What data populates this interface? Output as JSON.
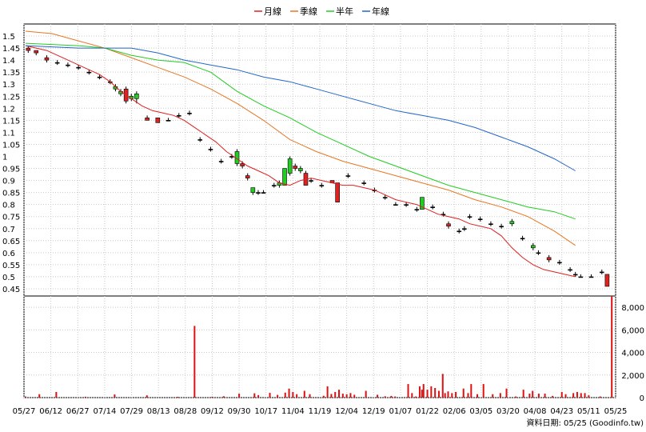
{
  "chart_data": {
    "type": "line",
    "legend": {
      "placement": "top-center",
      "items": [
        {
          "name": "月線",
          "color": "#e02020"
        },
        {
          "name": "季線",
          "color": "#e87722"
        },
        {
          "name": "半年",
          "color": "#22cc22"
        },
        {
          "name": "年線",
          "color": "#2266cc"
        }
      ]
    },
    "x_tick_labels": [
      "05/27",
      "06/12",
      "06/27",
      "07/14",
      "07/29",
      "08/13",
      "08/28",
      "09/12",
      "09/30",
      "10/17",
      "11/04",
      "11/19",
      "12/04",
      "12/19",
      "01/07",
      "01/22",
      "02/06",
      "03/05",
      "03/20",
      "04/08",
      "04/23",
      "05/11",
      "05/25"
    ],
    "price_axis": {
      "ticks": [
        1.5,
        1.45,
        1.4,
        1.35,
        1.3,
        1.25,
        1.2,
        1.15,
        1.1,
        1.05,
        1,
        0.95,
        0.9,
        0.85,
        0.8,
        0.75,
        0.7,
        0.65,
        0.6,
        0.55,
        0.5,
        0.45
      ],
      "ylim": [
        0.42,
        1.55
      ]
    },
    "volume_axis": {
      "ticks": [
        "8,000",
        "6,000",
        "4,000",
        "2,000",
        "0"
      ],
      "ylim": [
        0,
        9000
      ]
    },
    "grid": true,
    "series": [
      {
        "name": "月線",
        "color": "#e02020",
        "values": [
          [
            0,
            1.46
          ],
          [
            4,
            1.45
          ],
          [
            8,
            1.44
          ],
          [
            12,
            1.42
          ],
          [
            16,
            1.4
          ],
          [
            20,
            1.38
          ],
          [
            24,
            1.36
          ],
          [
            28,
            1.34
          ],
          [
            32,
            1.31
          ],
          [
            36,
            1.27
          ],
          [
            40,
            1.24
          ],
          [
            44,
            1.21
          ],
          [
            48,
            1.19
          ],
          [
            52,
            1.18
          ],
          [
            56,
            1.17
          ],
          [
            60,
            1.15
          ],
          [
            64,
            1.12
          ],
          [
            68,
            1.09
          ],
          [
            72,
            1.06
          ],
          [
            76,
            1.02
          ],
          [
            80,
            0.99
          ],
          [
            84,
            0.96
          ],
          [
            88,
            0.94
          ],
          [
            92,
            0.92
          ],
          [
            96,
            0.89
          ],
          [
            100,
            0.88
          ],
          [
            104,
            0.9
          ],
          [
            108,
            0.91
          ],
          [
            112,
            0.9
          ],
          [
            116,
            0.89
          ],
          [
            120,
            0.88
          ],
          [
            124,
            0.88
          ],
          [
            128,
            0.87
          ],
          [
            132,
            0.86
          ],
          [
            136,
            0.84
          ],
          [
            140,
            0.82
          ],
          [
            144,
            0.81
          ],
          [
            148,
            0.8
          ],
          [
            152,
            0.78
          ],
          [
            156,
            0.76
          ],
          [
            160,
            0.75
          ],
          [
            164,
            0.74
          ],
          [
            168,
            0.72
          ],
          [
            172,
            0.71
          ],
          [
            176,
            0.7
          ],
          [
            180,
            0.67
          ],
          [
            184,
            0.62
          ],
          [
            188,
            0.58
          ],
          [
            192,
            0.55
          ],
          [
            196,
            0.53
          ],
          [
            200,
            0.52
          ],
          [
            204,
            0.51
          ],
          [
            208,
            0.5
          ]
        ]
      },
      {
        "name": "季線",
        "color": "#e87722",
        "values": [
          [
            0,
            1.52
          ],
          [
            10,
            1.51
          ],
          [
            20,
            1.48
          ],
          [
            30,
            1.45
          ],
          [
            40,
            1.41
          ],
          [
            50,
            1.37
          ],
          [
            60,
            1.33
          ],
          [
            70,
            1.28
          ],
          [
            80,
            1.22
          ],
          [
            90,
            1.15
          ],
          [
            100,
            1.07
          ],
          [
            110,
            1.02
          ],
          [
            120,
            0.98
          ],
          [
            130,
            0.95
          ],
          [
            140,
            0.92
          ],
          [
            150,
            0.89
          ],
          [
            160,
            0.86
          ],
          [
            170,
            0.82
          ],
          [
            180,
            0.79
          ],
          [
            190,
            0.75
          ],
          [
            200,
            0.69
          ],
          [
            208,
            0.63
          ]
        ]
      },
      {
        "name": "半年",
        "color": "#22cc22",
        "values": [
          [
            0,
            1.47
          ],
          [
            20,
            1.46
          ],
          [
            30,
            1.45
          ],
          [
            40,
            1.42
          ],
          [
            50,
            1.4
          ],
          [
            60,
            1.39
          ],
          [
            70,
            1.35
          ],
          [
            80,
            1.27
          ],
          [
            90,
            1.21
          ],
          [
            100,
            1.16
          ],
          [
            110,
            1.1
          ],
          [
            120,
            1.05
          ],
          [
            130,
            1.0
          ],
          [
            140,
            0.96
          ],
          [
            150,
            0.92
          ],
          [
            160,
            0.88
          ],
          [
            170,
            0.85
          ],
          [
            180,
            0.82
          ],
          [
            190,
            0.79
          ],
          [
            200,
            0.77
          ],
          [
            208,
            0.74
          ]
        ]
      },
      {
        "name": "年線",
        "color": "#2266cc",
        "values": [
          [
            0,
            1.46
          ],
          [
            20,
            1.45
          ],
          [
            40,
            1.45
          ],
          [
            50,
            1.43
          ],
          [
            60,
            1.4
          ],
          [
            70,
            1.38
          ],
          [
            80,
            1.36
          ],
          [
            90,
            1.33
          ],
          [
            100,
            1.31
          ],
          [
            110,
            1.28
          ],
          [
            120,
            1.25
          ],
          [
            130,
            1.22
          ],
          [
            140,
            1.19
          ],
          [
            150,
            1.17
          ],
          [
            160,
            1.15
          ],
          [
            170,
            1.12
          ],
          [
            180,
            1.08
          ],
          [
            190,
            1.04
          ],
          [
            200,
            0.99
          ],
          [
            208,
            0.94
          ]
        ]
      }
    ],
    "candles_ohlc": [
      [
        1,
        1.45,
        1.46,
        1.43,
        1.44
      ],
      [
        4,
        1.44,
        1.44,
        1.42,
        1.43
      ],
      [
        8,
        1.41,
        1.42,
        1.39,
        1.4
      ],
      [
        12,
        1.39,
        1.4,
        1.38,
        1.39
      ],
      [
        16,
        1.38,
        1.39,
        1.37,
        1.38
      ],
      [
        20,
        1.37,
        1.38,
        1.36,
        1.37
      ],
      [
        24,
        1.35,
        1.36,
        1.34,
        1.35
      ],
      [
        28,
        1.33,
        1.34,
        1.32,
        1.33
      ],
      [
        32,
        1.31,
        1.32,
        1.3,
        1.31
      ],
      [
        34,
        1.28,
        1.3,
        1.27,
        1.29
      ],
      [
        36,
        1.26,
        1.28,
        1.25,
        1.27
      ],
      [
        38,
        1.28,
        1.29,
        1.22,
        1.23
      ],
      [
        40,
        1.24,
        1.26,
        1.23,
        1.25
      ],
      [
        42,
        1.24,
        1.27,
        1.22,
        1.26
      ],
      [
        46,
        1.16,
        1.17,
        1.15,
        1.15
      ],
      [
        50,
        1.16,
        1.16,
        1.14,
        1.14
      ],
      [
        54,
        1.15,
        1.16,
        1.15,
        1.15
      ],
      [
        58,
        1.17,
        1.18,
        1.16,
        1.17
      ],
      [
        62,
        1.18,
        1.19,
        1.17,
        1.18
      ],
      [
        66,
        1.07,
        1.08,
        1.06,
        1.07
      ],
      [
        70,
        1.03,
        1.04,
        1.02,
        1.03
      ],
      [
        74,
        0.98,
        0.99,
        0.97,
        0.98
      ],
      [
        78,
        1.0,
        1.01,
        0.99,
        1.0
      ],
      [
        80,
        0.97,
        1.03,
        0.96,
        1.02
      ],
      [
        82,
        0.97,
        0.98,
        0.95,
        0.96
      ],
      [
        84,
        0.92,
        0.93,
        0.9,
        0.91
      ],
      [
        86,
        0.85,
        0.87,
        0.84,
        0.87
      ],
      [
        88,
        0.85,
        0.86,
        0.84,
        0.85
      ],
      [
        90,
        0.85,
        0.86,
        0.85,
        0.85
      ],
      [
        94,
        0.88,
        0.89,
        0.87,
        0.88
      ],
      [
        96,
        0.88,
        0.9,
        0.87,
        0.89
      ],
      [
        98,
        0.88,
        0.95,
        0.88,
        0.95
      ],
      [
        100,
        0.93,
        1.0,
        0.92,
        0.99
      ],
      [
        102,
        0.96,
        0.97,
        0.94,
        0.95
      ],
      [
        104,
        0.94,
        0.96,
        0.93,
        0.95
      ],
      [
        106,
        0.93,
        0.94,
        0.88,
        0.88
      ],
      [
        108,
        0.9,
        0.91,
        0.89,
        0.9
      ],
      [
        112,
        0.88,
        0.89,
        0.87,
        0.88
      ],
      [
        116,
        0.9,
        0.9,
        0.89,
        0.89
      ],
      [
        118,
        0.89,
        0.89,
        0.81,
        0.81
      ],
      [
        122,
        0.92,
        0.93,
        0.91,
        0.92
      ],
      [
        128,
        0.89,
        0.9,
        0.88,
        0.89
      ],
      [
        132,
        0.86,
        0.87,
        0.85,
        0.86
      ],
      [
        136,
        0.83,
        0.84,
        0.82,
        0.83
      ],
      [
        140,
        0.8,
        0.81,
        0.8,
        0.8
      ],
      [
        144,
        0.8,
        0.81,
        0.79,
        0.8
      ],
      [
        148,
        0.78,
        0.79,
        0.77,
        0.78
      ],
      [
        150,
        0.78,
        0.83,
        0.78,
        0.83
      ],
      [
        154,
        0.79,
        0.8,
        0.78,
        0.79
      ],
      [
        158,
        0.76,
        0.77,
        0.75,
        0.76
      ],
      [
        160,
        0.72,
        0.73,
        0.7,
        0.71
      ],
      [
        164,
        0.69,
        0.7,
        0.68,
        0.69
      ],
      [
        166,
        0.7,
        0.71,
        0.69,
        0.7
      ],
      [
        168,
        0.75,
        0.76,
        0.74,
        0.75
      ],
      [
        172,
        0.74,
        0.75,
        0.73,
        0.74
      ],
      [
        176,
        0.72,
        0.73,
        0.71,
        0.72
      ],
      [
        180,
        0.71,
        0.72,
        0.7,
        0.71
      ],
      [
        184,
        0.72,
        0.74,
        0.71,
        0.73
      ],
      [
        188,
        0.66,
        0.67,
        0.65,
        0.66
      ],
      [
        192,
        0.62,
        0.64,
        0.61,
        0.63
      ],
      [
        194,
        0.6,
        0.61,
        0.59,
        0.6
      ],
      [
        198,
        0.58,
        0.59,
        0.56,
        0.57
      ],
      [
        202,
        0.56,
        0.57,
        0.55,
        0.56
      ],
      [
        206,
        0.53,
        0.54,
        0.52,
        0.53
      ],
      [
        208,
        0.51,
        0.52,
        0.5,
        0.51
      ],
      [
        210,
        0.5,
        0.51,
        0.5,
        0.5
      ],
      [
        214,
        0.5,
        0.51,
        0.5,
        0.5
      ],
      [
        218,
        0.52,
        0.53,
        0.51,
        0.52
      ],
      [
        220,
        0.51,
        0.51,
        0.46,
        0.46
      ]
    ],
    "volume": [
      [
        2,
        100
      ],
      [
        20,
        300
      ],
      [
        42,
        500
      ],
      [
        80,
        80
      ],
      [
        118,
        280
      ],
      [
        160,
        200
      ],
      [
        200,
        70
      ],
      [
        222,
        6350
      ],
      [
        245,
        80
      ],
      [
        260,
        120
      ],
      [
        280,
        350
      ],
      [
        300,
        380
      ],
      [
        305,
        220
      ],
      [
        320,
        420
      ],
      [
        330,
        240
      ],
      [
        340,
        440
      ],
      [
        345,
        800
      ],
      [
        350,
        500
      ],
      [
        355,
        300
      ],
      [
        365,
        600
      ],
      [
        372,
        300
      ],
      [
        390,
        160
      ],
      [
        395,
        1000
      ],
      [
        400,
        320
      ],
      [
        405,
        500
      ],
      [
        410,
        700
      ],
      [
        415,
        350
      ],
      [
        420,
        300
      ],
      [
        425,
        400
      ],
      [
        430,
        250
      ],
      [
        445,
        600
      ],
      [
        460,
        250
      ],
      [
        470,
        120
      ],
      [
        478,
        150
      ],
      [
        483,
        100
      ],
      [
        500,
        1200
      ],
      [
        505,
        400
      ],
      [
        510,
        100
      ],
      [
        515,
        1000
      ],
      [
        518,
        700
      ],
      [
        520,
        1200
      ],
      [
        525,
        700
      ],
      [
        530,
        1000
      ],
      [
        535,
        850
      ],
      [
        540,
        600
      ],
      [
        545,
        2100
      ],
      [
        548,
        400
      ],
      [
        552,
        550
      ],
      [
        557,
        400
      ],
      [
        562,
        500
      ],
      [
        572,
        800
      ],
      [
        578,
        400
      ],
      [
        582,
        1200
      ],
      [
        590,
        300
      ],
      [
        598,
        1200
      ],
      [
        610,
        300
      ],
      [
        620,
        400
      ],
      [
        628,
        800
      ],
      [
        640,
        100
      ],
      [
        650,
        700
      ],
      [
        658,
        350
      ],
      [
        662,
        600
      ],
      [
        670,
        350
      ],
      [
        678,
        350
      ],
      [
        688,
        150
      ],
      [
        700,
        500
      ],
      [
        705,
        300
      ],
      [
        715,
        400
      ],
      [
        720,
        500
      ],
      [
        725,
        400
      ],
      [
        730,
        400
      ],
      [
        735,
        200
      ],
      [
        750,
        100
      ],
      [
        765,
        9000
      ]
    ],
    "footer": "資料日期: 05/25 (Goodinfo.tw)"
  }
}
